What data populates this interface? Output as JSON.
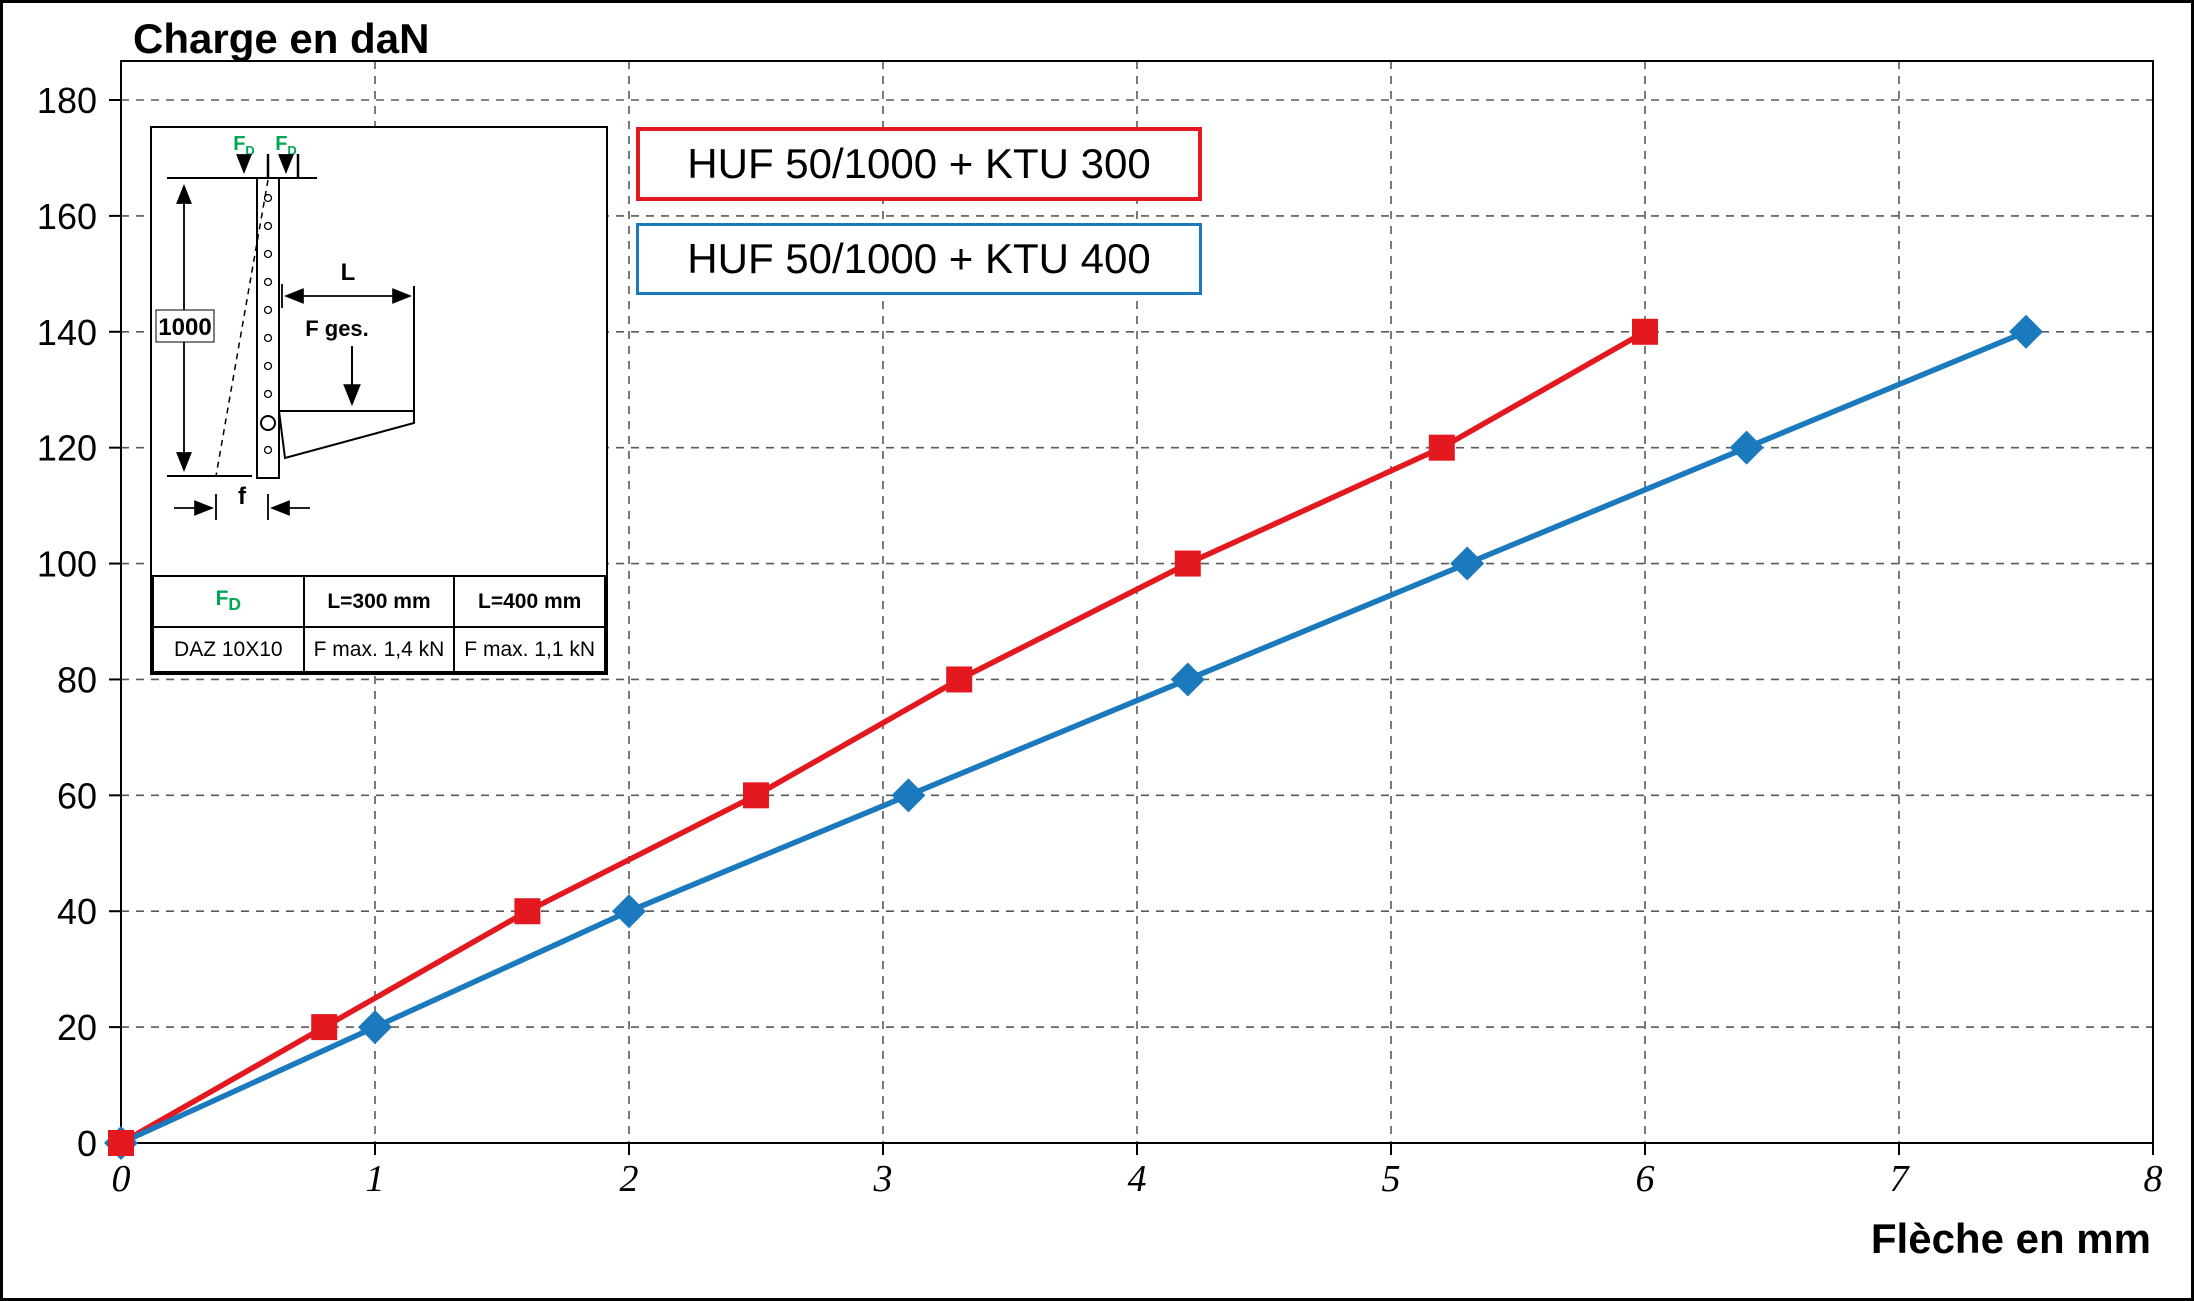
{
  "page": {
    "title": "Charge en daN",
    "xlabel": "Flèche en mm"
  },
  "legend": {
    "items": [
      {
        "label": "HUF 50/1000 + KTU 300",
        "color": "#e4181f"
      },
      {
        "label": "HUF 50/1000 + KTU 400",
        "color": "#1b79be"
      }
    ]
  },
  "chart_data": {
    "type": "line",
    "title": "Charge en daN",
    "xlabel": "Flèche en mm",
    "ylabel": "Charge en daN",
    "xlim": [
      0,
      8
    ],
    "ylim": [
      0,
      180
    ],
    "xticks": [
      0,
      1,
      2,
      3,
      4,
      5,
      6,
      7,
      8
    ],
    "yticks": [
      0,
      20,
      40,
      60,
      80,
      100,
      120,
      140,
      160,
      180
    ],
    "grid": "dashed",
    "legend_position": "top-center",
    "series": [
      {
        "name": "HUF 50/1000 + KTU 300",
        "color": "#e4181f",
        "marker": "square",
        "x": [
          0,
          0.8,
          1.6,
          2.5,
          3.3,
          4.2,
          5.2,
          6.0
        ],
        "y": [
          0,
          20,
          40,
          60,
          80,
          100,
          120,
          140
        ]
      },
      {
        "name": "HUF 50/1000 + KTU 400",
        "color": "#1b79be",
        "marker": "diamond",
        "x": [
          0,
          1.0,
          2.0,
          3.1,
          4.2,
          5.3,
          6.4,
          7.5
        ],
        "y": [
          0,
          20,
          40,
          60,
          80,
          100,
          120,
          140
        ]
      }
    ]
  },
  "inset": {
    "fd": {
      "base": "F",
      "sub": "D"
    },
    "dim_height": "1000",
    "dim_length": "L",
    "force_label": "F ges.",
    "deflection_label": "f",
    "table": {
      "rows": [
        {
          "c0_base": "F",
          "c0_sub": "D",
          "c1": "L=300 mm",
          "c2": "L=400 mm"
        },
        {
          "c0": "DAZ 10X10",
          "c1": "F max. 1,4 kN",
          "c2": "F max. 1,1 kN"
        }
      ]
    }
  },
  "colors": {
    "grid": "#5a5a5a",
    "axis": "#000000",
    "accent_green": "#00a651",
    "series_red": "#e4181f",
    "series_blue": "#1b79be"
  }
}
